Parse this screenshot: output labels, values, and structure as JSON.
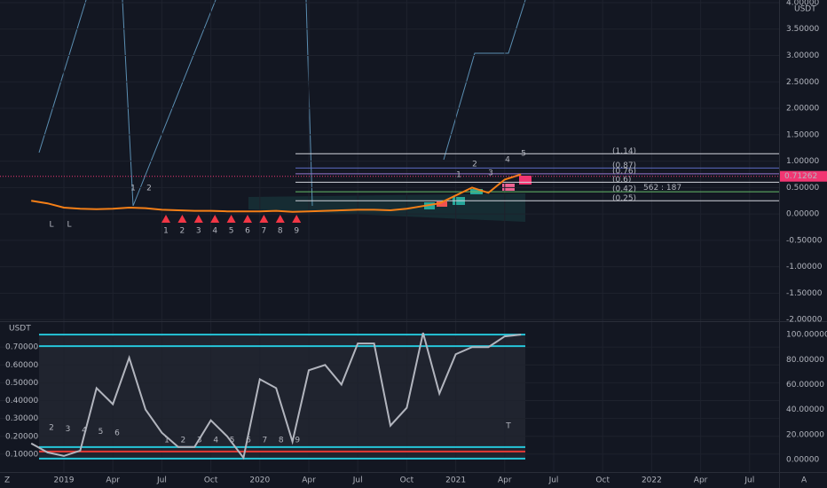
{
  "chart_data": [
    {
      "type": "line",
      "unit": "USDT",
      "categories": [
        null,
        null,
        "2019",
        null,
        null,
        "Apr",
        null,
        null,
        "Jul",
        null,
        null,
        "Oct",
        null,
        null,
        "2020",
        null,
        null,
        "Apr",
        null,
        null,
        "Jul",
        null,
        null,
        "Oct",
        null,
        null,
        "2021",
        null,
        null,
        "Apr",
        null,
        null,
        "Jul",
        null,
        null,
        "Oct",
        null,
        null,
        "2022",
        null,
        null,
        "Apr",
        null,
        null,
        "Jul"
      ],
      "values": [
        0.25,
        0.2,
        0.12,
        0.1,
        0.09,
        0.1,
        0.12,
        0.11,
        0.08,
        0.07,
        0.06,
        0.06,
        0.05,
        0.05,
        0.05,
        0.06,
        0.04,
        0.05,
        0.06,
        0.07,
        0.08,
        0.08,
        0.07,
        0.1,
        0.15,
        0.2,
        0.35,
        0.5,
        0.4,
        0.65,
        0.75,
        null,
        null,
        null,
        null,
        null,
        null,
        null,
        null,
        null,
        null,
        null,
        null,
        null,
        null
      ],
      "color": "#f57f17",
      "ylim": [
        -2.03,
        4.05
      ],
      "yticks": [
        {
          "value": 4,
          "label": "4.00000"
        },
        {
          "value": 3.5,
          "label": "3.50000"
        },
        {
          "value": 3,
          "label": "3.00000"
        },
        {
          "value": 2.5,
          "label": "2.50000"
        },
        {
          "value": 2,
          "label": "2.00000"
        },
        {
          "value": 1.5,
          "label": "1.50000"
        },
        {
          "value": 1,
          "label": "1.00000"
        },
        {
          "value": 0.5,
          "label": "0.50000"
        },
        {
          "value": 0,
          "label": "0.00000"
        },
        {
          "value": -0.5,
          "label": "-0.50000"
        },
        {
          "value": -1,
          "label": "-1.00000"
        },
        {
          "value": -1.5,
          "label": "-1.50000"
        },
        {
          "value": -2,
          "label": "-2.00000"
        }
      ],
      "levels": [
        {
          "value": 1.14,
          "label": "(1.14)",
          "color": "#d1d4dc"
        },
        {
          "value": 0.87,
          "label": "(0.87)",
          "color": "#5c6bc0"
        },
        {
          "value": 0.76,
          "label": "(0.76)",
          "color": "#9575cd"
        },
        {
          "value": 0.6,
          "label": "(0.6)",
          "color": "#d1d4dc"
        },
        {
          "value": 0.42,
          "label": "(0.42)",
          "color": "#66bb6a"
        },
        {
          "value": 0.25,
          "label": "(0.25)",
          "color": "#d1d4dc"
        }
      ],
      "last_price": {
        "value": 0.71262,
        "label": "0.71262",
        "color": "#f23672"
      },
      "ratio_label": "562 : 187",
      "count_labels": [
        "1",
        "2",
        "3",
        "4",
        "5",
        "6",
        "7",
        "8",
        "9"
      ],
      "green_labels": [
        "1",
        "2",
        "1",
        "2",
        "3",
        "4",
        "5"
      ],
      "letter_labels": [
        "L",
        "L"
      ]
    },
    {
      "type": "line",
      "unit": "USDT",
      "values": [
        0.16,
        0.11,
        0.09,
        0.12,
        0.47,
        0.38,
        0.64,
        0.35,
        0.22,
        0.14,
        0.14,
        0.29,
        0.2,
        0.08,
        0.52,
        0.47,
        0.17,
        0.57,
        0.6,
        0.49,
        0.72,
        0.72,
        0.26,
        0.36,
        0.78,
        0.44,
        0.66,
        0.7,
        0.7,
        0.76,
        0.77,
        null,
        null,
        null,
        null,
        null,
        null,
        null,
        null,
        null,
        null,
        null,
        null,
        null,
        null
      ],
      "color": "#b2b5be",
      "ylim": [
        0,
        0.84
      ],
      "yticks": [
        {
          "value": 0.1,
          "label": "0.10000"
        },
        {
          "value": 0.2,
          "label": "0.20000"
        },
        {
          "value": 0.3,
          "label": "0.30000"
        },
        {
          "value": 0.4,
          "label": "0.40000"
        },
        {
          "value": 0.5,
          "label": "0.50000"
        },
        {
          "value": 0.6,
          "label": "0.60000"
        },
        {
          "value": 0.7,
          "label": "0.70000"
        }
      ],
      "y2lim": [
        -10,
        110
      ],
      "y2ticks": [
        {
          "value": 0,
          "label": "0.00000"
        },
        {
          "value": 20,
          "label": "20.00000"
        },
        {
          "value": 40,
          "label": "40.00000"
        },
        {
          "value": 60,
          "label": "60.00000"
        },
        {
          "value": 80,
          "label": "80.00000"
        },
        {
          "value": 100,
          "label": "100.00000"
        }
      ],
      "levels": [
        {
          "value": 0.77,
          "color": "#26c6da"
        },
        {
          "value": 0.705,
          "color": "#26c6da"
        },
        {
          "value": 0.14,
          "color": "#26c6da"
        },
        {
          "value": 0.115,
          "color": "#e53935"
        },
        {
          "value": 0.075,
          "color": "#26c6da"
        }
      ],
      "count_labels_a": [
        "2",
        "3",
        "4",
        "5",
        "6"
      ],
      "count_labels_b": [
        "1",
        "2",
        "3",
        "4",
        "5",
        "6",
        "7",
        "8",
        "9"
      ],
      "t_label": "T"
    }
  ]
}
